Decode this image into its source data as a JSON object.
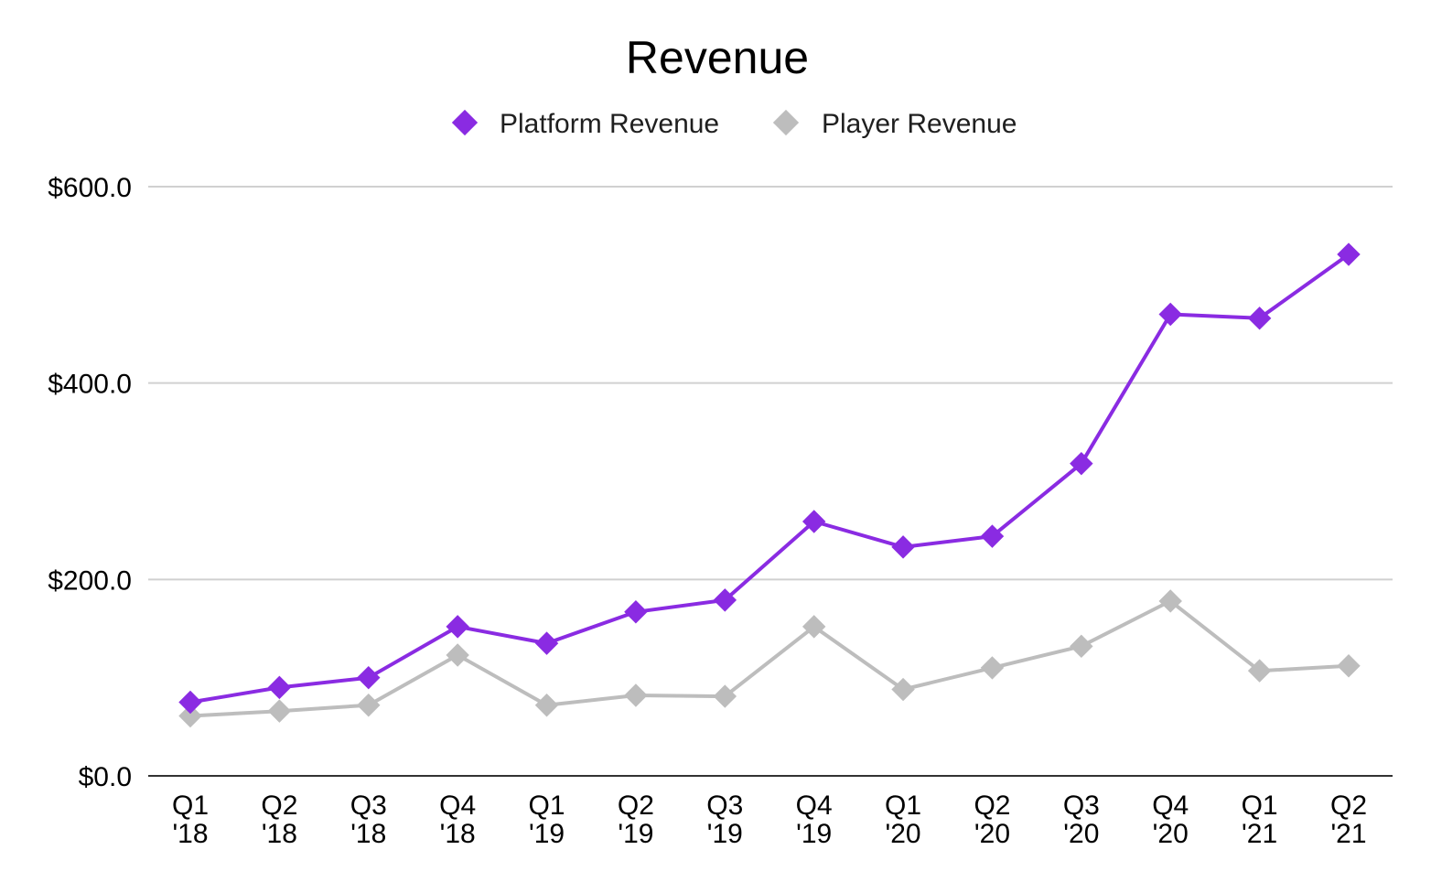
{
  "chart_data": {
    "type": "line",
    "title": "Revenue",
    "xlabel": "",
    "ylabel": "",
    "categories": [
      [
        "Q1",
        "'18"
      ],
      [
        "Q2",
        "'18"
      ],
      [
        "Q3",
        "'18"
      ],
      [
        "Q4",
        "'18"
      ],
      [
        "Q1",
        "'19"
      ],
      [
        "Q2",
        "'19"
      ],
      [
        "Q3",
        "'19"
      ],
      [
        "Q4",
        "'19"
      ],
      [
        "Q1",
        "'20"
      ],
      [
        "Q2",
        "'20"
      ],
      [
        "Q3",
        "'20"
      ],
      [
        "Q4",
        "'20"
      ],
      [
        "Q1",
        "'21"
      ],
      [
        "Q2",
        "'21"
      ]
    ],
    "series": [
      {
        "name": "Platform Revenue",
        "color": "#8a2be2",
        "marker": "diamond",
        "values": [
          75,
          90,
          100,
          152,
          135,
          167,
          179,
          259,
          233,
          244,
          318,
          470,
          466,
          531
        ]
      },
      {
        "name": "Player Revenue",
        "color": "#bdbdbd",
        "marker": "diamond",
        "values": [
          61,
          66,
          72,
          123,
          72,
          82,
          81,
          152,
          88,
          110,
          132,
          178,
          107,
          112
        ]
      }
    ],
    "yticks": [
      "$0.0",
      "$200.0",
      "$400.0",
      "$600.0"
    ],
    "ytick_values": [
      0,
      200,
      400,
      600
    ],
    "ylim": [
      0,
      600
    ],
    "grid": true,
    "legend_position": "top-center"
  }
}
